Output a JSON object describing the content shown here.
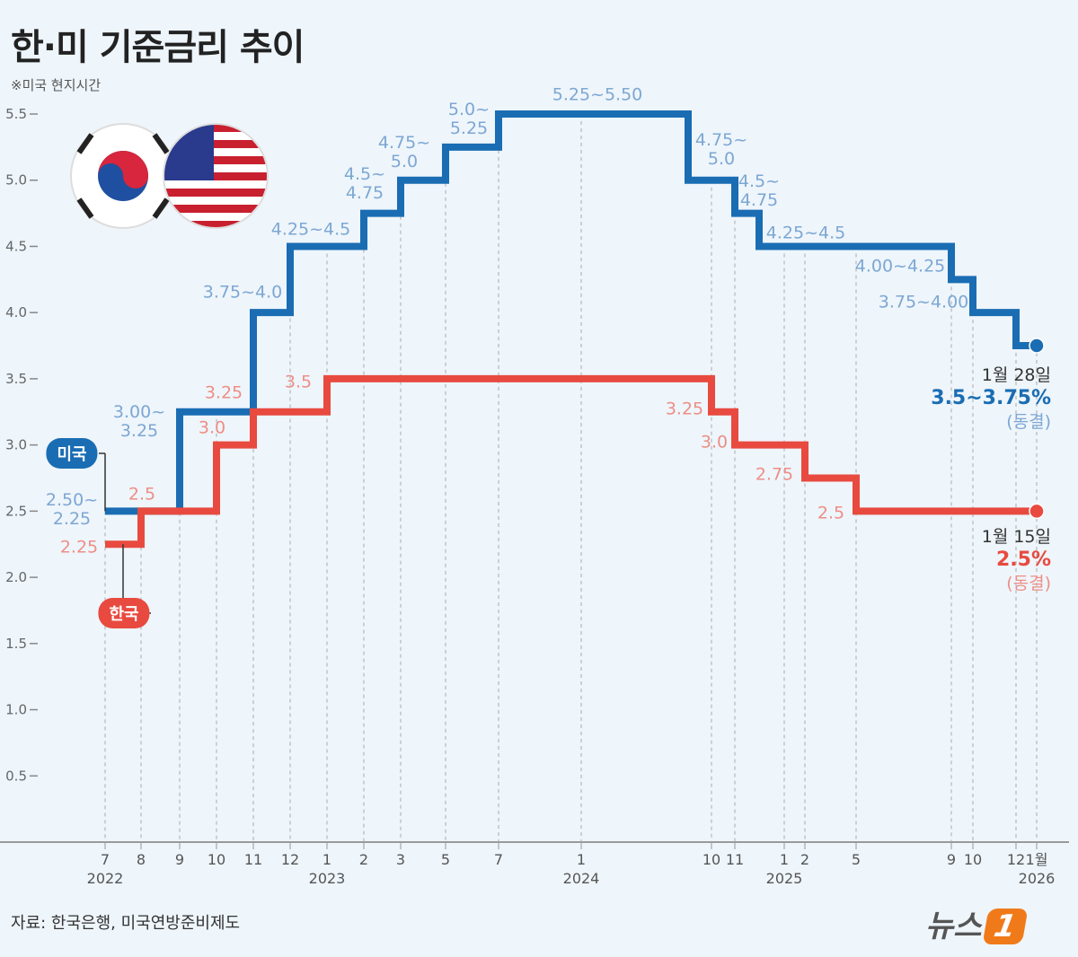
{
  "chart_data": {
    "type": "step",
    "title": "한·미 기준금리 추이",
    "subtitle": "※미국 현지시간",
    "source": "자료: 한국은행, 미국연방준비제도",
    "logo": {
      "text": "뉴스",
      "mark": "1"
    },
    "categories": [
      "7",
      "8",
      "9",
      "10",
      "11",
      "12",
      "1",
      "2",
      "3",
      "5",
      "7",
      "1",
      null,
      "10",
      "11",
      null,
      "1",
      "2",
      "5",
      "9",
      "10",
      "12",
      "1월"
    ],
    "years": [
      "2022",
      null,
      null,
      null,
      null,
      null,
      "2023",
      null,
      null,
      null,
      null,
      "2024",
      null,
      null,
      null,
      null,
      "2025",
      null,
      null,
      null,
      null,
      null,
      "2026"
    ],
    "ylim": [
      0,
      5.5
    ],
    "yticks": [
      0.5,
      {
        "value": 1,
        "label": "1.0"
      },
      1.5,
      {
        "value": 2,
        "label": "2.0"
      },
      2.5,
      {
        "value": 3,
        "label": "3.0"
      },
      3.5,
      {
        "value": 4,
        "label": "4.0"
      },
      4.5,
      {
        "value": 5,
        "label": "5.0"
      },
      5.5
    ],
    "series": [
      {
        "name": "미국",
        "color": "#1a6db3",
        "label_color": "#7da7d3",
        "values": [
          2.5,
          2.5,
          3.25,
          3.25,
          4.0,
          4.5,
          4.5,
          4.75,
          5.0,
          5.25,
          5.5,
          5.5,
          5.0,
          5.0,
          4.75,
          4.5,
          4.5,
          4.5,
          4.5,
          4.25,
          4.0,
          3.75,
          3.75
        ],
        "value_labels": [
          "2.50~\n2.25",
          null,
          "3.00~\n3.25",
          null,
          "3.75~4.0",
          "4.25~4.5",
          null,
          "4.5~\n4.75",
          "4.75~\n5.0",
          "5.0~\n5.25",
          "5.25~5.50",
          null,
          "4.75~\n5.0",
          null,
          "4.5~\n4.75",
          "4.25~4.5",
          null,
          null,
          null,
          "4.00~4.25",
          "3.75~4.00",
          null,
          null
        ],
        "end_note": [
          "1월 28일",
          "3.5~3.75%",
          "(동결)"
        ]
      },
      {
        "name": "한국",
        "color": "#e84a40",
        "label_color": "#ee8e86",
        "values": [
          2.25,
          2.5,
          2.5,
          3.0,
          3.25,
          3.25,
          3.5,
          3.5,
          3.5,
          3.5,
          3.5,
          3.5,
          3.5,
          3.25,
          3.0,
          3.0,
          3.0,
          2.75,
          2.5,
          2.5,
          2.5,
          2.5,
          2.5
        ],
        "value_labels": [
          "2.25",
          "2.5",
          null,
          "3.0",
          "3.25",
          null,
          "3.5",
          null,
          null,
          null,
          null,
          null,
          null,
          "3.25",
          "3.0",
          null,
          null,
          "2.75",
          "2.5",
          null,
          null,
          null,
          null
        ],
        "end_note": [
          "1월 15일",
          "2.5%",
          "(동결)"
        ]
      }
    ]
  }
}
